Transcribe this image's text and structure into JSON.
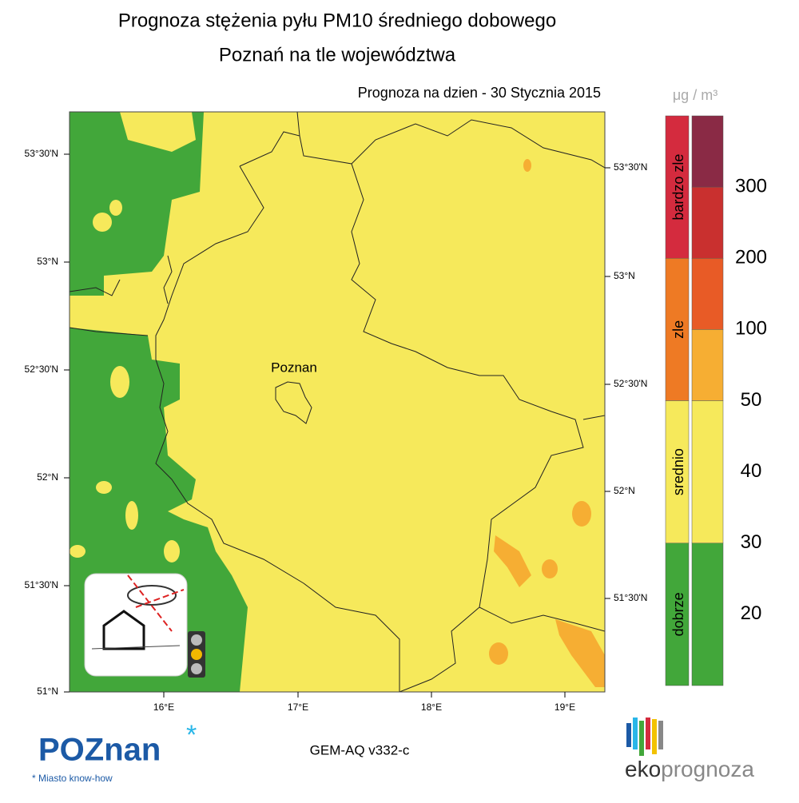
{
  "header": {
    "title": "Prognoza stężenia pyłu PM10 średniego dobowego",
    "subtitle": "Poznań na tle województwa",
    "date_label": "Prognoza na dzien -  30 Stycznia 2015"
  },
  "map": {
    "city_label": "Poznan",
    "lat_labels_left": [
      "53°30'N",
      "53°N",
      "52°30'N",
      "52°N",
      "51°30'N",
      "51°N"
    ],
    "lat_labels_right": [
      "53°30'N",
      "53°N",
      "52°30'N",
      "52°N",
      "51°30'N"
    ],
    "lon_labels": [
      "16°E",
      "17°E",
      "18°E",
      "19°E"
    ]
  },
  "legend": {
    "unit": "μg / m³",
    "categories": [
      {
        "label": "bardzo zle",
        "color": "#d42b3e"
      },
      {
        "label": "zle",
        "color": "#ee7a24"
      },
      {
        "label": "srednio",
        "color": "#f6e95b"
      },
      {
        "label": "dobrze",
        "color": "#42a73a"
      }
    ],
    "scale_colors": [
      "#8a2a45",
      "#c9302f",
      "#e85b26",
      "#f6ae33",
      "#f6e95b",
      "#42a73a"
    ],
    "scale_values": [
      300,
      200,
      100,
      50,
      40,
      30,
      20
    ]
  },
  "footer": {
    "model_label": "GEM-AQ v332-c",
    "logo_left": "POZnan",
    "logo_left_tagline": "* Miasto know-how",
    "logo_right_first": "eko",
    "logo_right_second": "prognoza"
  }
}
